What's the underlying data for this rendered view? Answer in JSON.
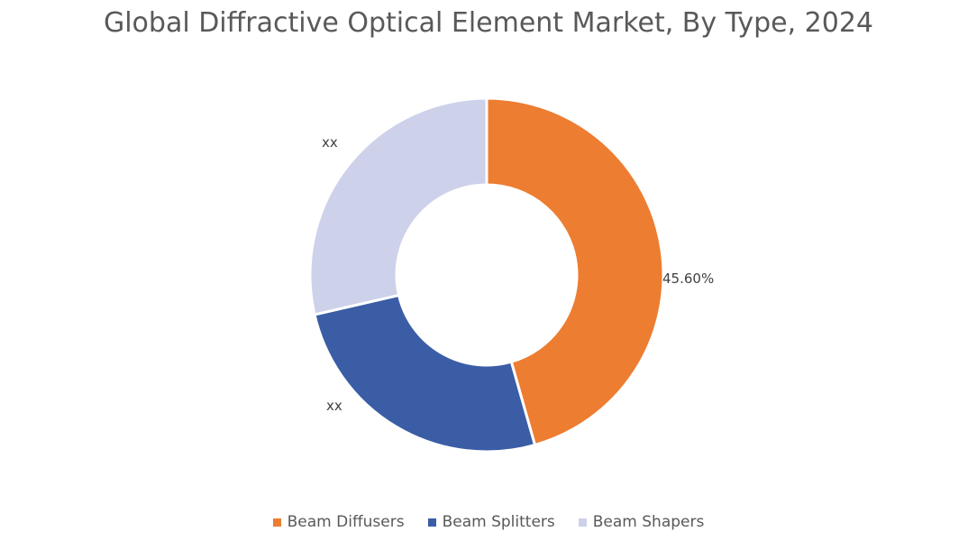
{
  "chart_data": {
    "type": "pie",
    "donut": true,
    "title": "Global Diffractive Optical Element Market, By Type, 2024",
    "categories": [
      "Beam Diffusers",
      "Beam Splitters",
      "Beam Shapers"
    ],
    "values": [
      45.6,
      25.8,
      28.6
    ],
    "data_labels": [
      "45.60%",
      "xx",
      "xx"
    ],
    "colors": [
      "#ED7D31",
      "#3A5DA6",
      "#CDD1EA"
    ],
    "legend_position": "bottom"
  }
}
